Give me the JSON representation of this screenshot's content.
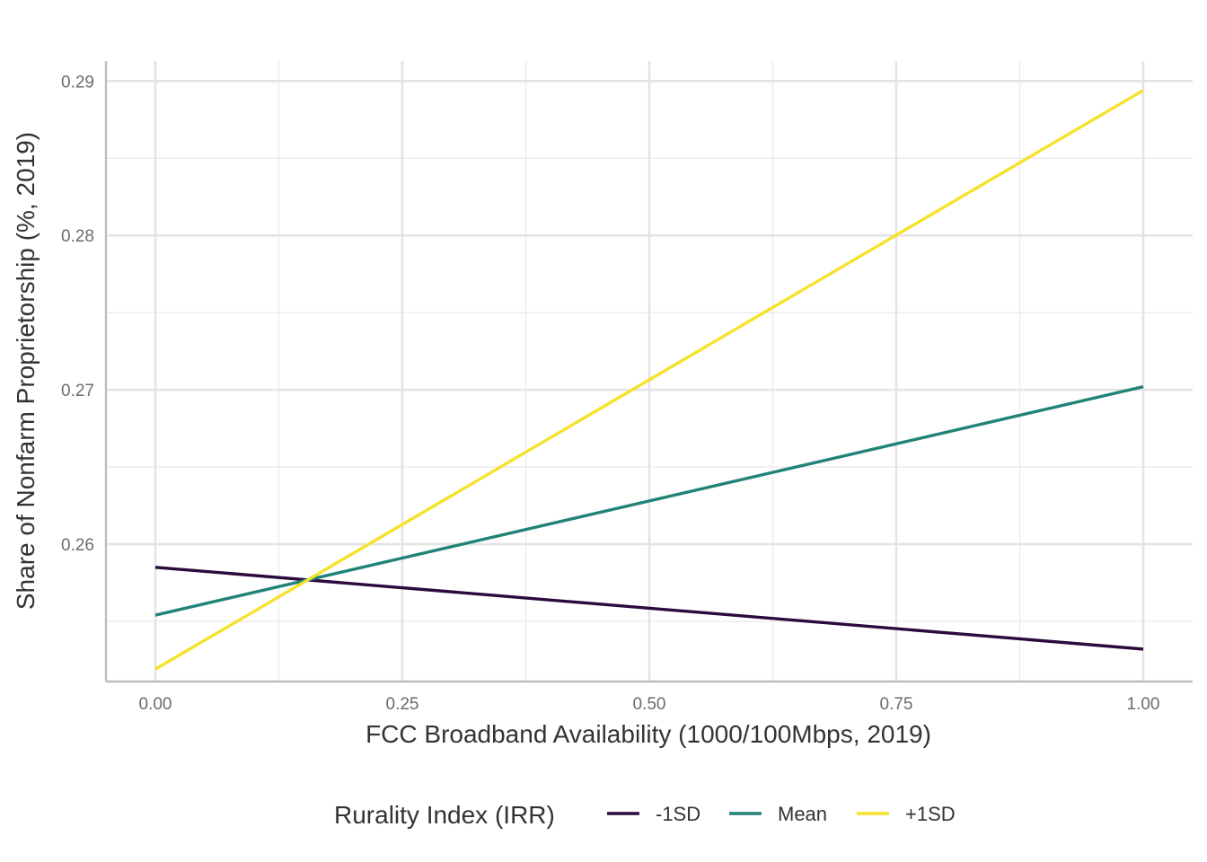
{
  "chart_data": {
    "type": "line",
    "title": "",
    "xlabel": "FCC Broadband Availability (1000/100Mbps, 2019)",
    "ylabel": "Share of Nonfarm Proprietorship (%, 2019)",
    "xlim": [
      -0.05,
      1.05
    ],
    "ylim": [
      0.2511,
      0.2913
    ],
    "x_ticks": [
      0.0,
      0.25,
      0.5,
      0.75,
      1.0
    ],
    "x_tick_labels": [
      "0.00",
      "0.25",
      "0.50",
      "0.75",
      "1.00"
    ],
    "y_ticks": [
      0.26,
      0.27,
      0.28,
      0.29
    ],
    "y_tick_labels": [
      "0.26",
      "0.27",
      "0.28",
      "0.29"
    ],
    "x_minor_ticks": [
      0.125,
      0.375,
      0.625,
      0.875
    ],
    "y_minor_ticks": [
      0.255,
      0.265,
      0.275,
      0.285
    ],
    "grid": true,
    "legend": {
      "title": "Rurality Index (IRR)",
      "position": "bottom"
    },
    "series": [
      {
        "name": "-1SD",
        "color": "#2d0a3d",
        "x": [
          0.0,
          1.0
        ],
        "y": [
          0.2585,
          0.2532
        ]
      },
      {
        "name": "Mean",
        "color": "#218377",
        "x": [
          0.0,
          1.0
        ],
        "y": [
          0.2554,
          0.2702
        ]
      },
      {
        "name": "+1SD",
        "color": "#f6e22c",
        "x": [
          0.0,
          1.0
        ],
        "y": [
          0.2519,
          0.2894
        ]
      }
    ]
  }
}
